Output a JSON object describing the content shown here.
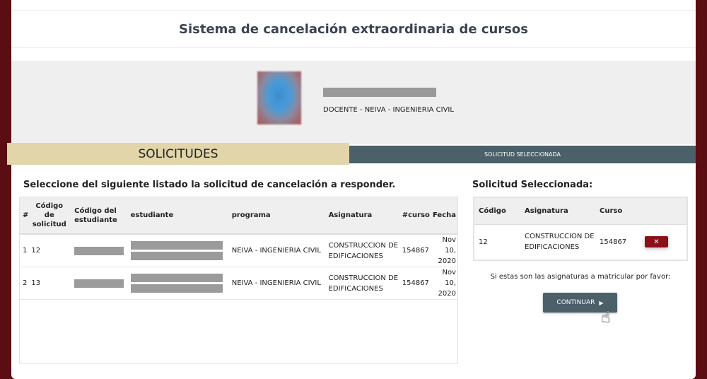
{
  "header": {
    "title": "Sistema de cancelación extraordinaria de cursos"
  },
  "profile": {
    "role": "DOCENTE - NEIVA - INGENIERIA CIVIL"
  },
  "tabs": [
    {
      "label": "SOLICITUDES"
    },
    {
      "label": "SOLICITUD SELECCIONADA"
    }
  ],
  "left": {
    "title": "Seleccione del siguiente listado la solicitud de cancelación a responder.",
    "columns": [
      "#",
      "Código de solicitud",
      "Código del estudiante",
      "estudiante",
      "programa",
      "Asignatura",
      "#curso",
      "Fecha"
    ],
    "rows": [
      {
        "n": "1",
        "codigo": "12",
        "programa": "NEIVA - INGENIERIA CIVIL",
        "asignatura": "CONSTRUCCION DE EDIFICACIONES",
        "curso": "154867",
        "fecha": "Nov 10, 2020"
      },
      {
        "n": "2",
        "codigo": "13",
        "programa": "NEIVA - INGENIERIA CIVIL",
        "asignatura": "CONSTRUCCION DE EDIFICACIONES",
        "curso": "154867",
        "fecha": "Nov 10, 2020"
      }
    ]
  },
  "right": {
    "title": "Solicitud Seleccionada:",
    "columns": [
      "Código",
      "Asignatura",
      "Curso"
    ],
    "row": {
      "codigo": "12",
      "asignatura": "CONSTRUCCION DE EDIFICACIONES",
      "curso": "154867",
      "remove": "✕"
    },
    "note": "Si estas son las asignaturas a matricular por favor:",
    "continue": "CONTINUAR",
    "continue_icon": "▶"
  },
  "colors": {
    "maroon": "#5a0d13",
    "tan": "#e1d5a9",
    "slate": "#4b6069",
    "red": "#8b1119"
  }
}
